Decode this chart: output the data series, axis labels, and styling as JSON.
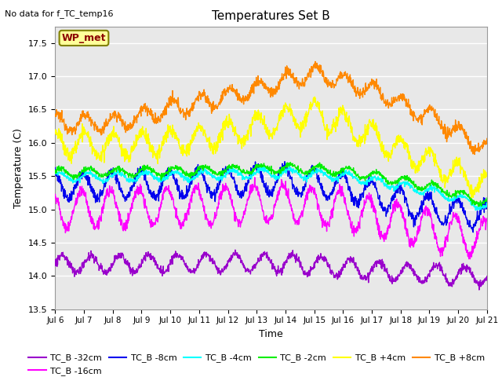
{
  "title": "Temperatures Set B",
  "top_left_text": "No data for f_TC_temp16",
  "ylabel": "Temperature (C)",
  "xlabel": "Time",
  "ylim": [
    13.5,
    17.75
  ],
  "yticks": [
    13.5,
    14.0,
    14.5,
    15.0,
    15.5,
    16.0,
    16.5,
    17.0,
    17.5
  ],
  "xtick_labels": [
    "Jul 6",
    "Jul 7",
    "Jul 8",
    "Jul 9",
    "Jul 10",
    "Jul 11",
    "Jul 12",
    "Jul 13",
    "Jul 14",
    "Jul 15",
    "Jul 16",
    "Jul 17",
    "Jul 18",
    "Jul 19",
    "Jul 20",
    "Jul 21"
  ],
  "colors": {
    "TC_B -32cm": "#9900cc",
    "TC_B -16cm": "#ff00ff",
    "TC_B -8cm": "#0000ee",
    "TC_B -4cm": "#00ffff",
    "TC_B -2cm": "#00ee00",
    "TC_B +4cm": "#ffff00",
    "TC_B +8cm": "#ff8800"
  },
  "background_color": "#e8e8e8",
  "grid_color": "#ffffff",
  "wp_met_text": "WP_met"
}
